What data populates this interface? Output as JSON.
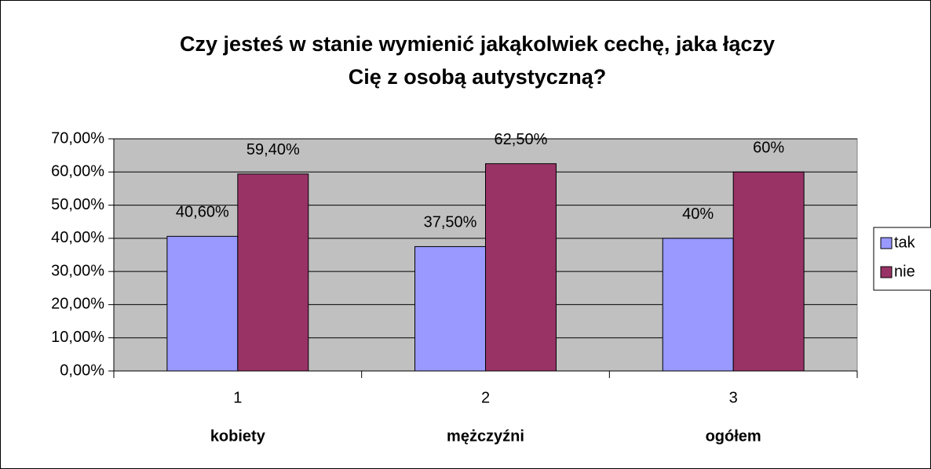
{
  "chart_data": {
    "type": "bar",
    "title": [
      "Czy jesteś w stanie wymienić jakąkolwiek cechę, jaka łączy",
      "Cię z osobą autystyczną?"
    ],
    "categories": [
      "1",
      "2",
      "3"
    ],
    "x_labels": [
      "kobiety",
      "mężczyźni",
      "ogółem"
    ],
    "series": [
      {
        "name": "tak",
        "color": "#9999ff",
        "values": [
          40.6,
          37.5,
          40
        ],
        "value_labels": [
          "40,60%",
          "37,50%",
          "40%"
        ]
      },
      {
        "name": "nie",
        "color": "#993366",
        "values": [
          59.4,
          62.5,
          60
        ],
        "value_labels": [
          "59,40%",
          "62,50%",
          "60%"
        ]
      }
    ],
    "ylim": [
      0,
      70
    ],
    "yticks": [
      {
        "value": 0,
        "label": "0,00%"
      },
      {
        "value": 10,
        "label": "10,00%"
      },
      {
        "value": 20,
        "label": "20,00%"
      },
      {
        "value": 30,
        "label": "30,00%"
      },
      {
        "value": 40,
        "label": "40,00%"
      },
      {
        "value": 50,
        "label": "50,00%"
      },
      {
        "value": 60,
        "label": "60,00%"
      },
      {
        "value": 70,
        "label": "70,00%"
      }
    ],
    "grid": true,
    "legend": "right"
  }
}
